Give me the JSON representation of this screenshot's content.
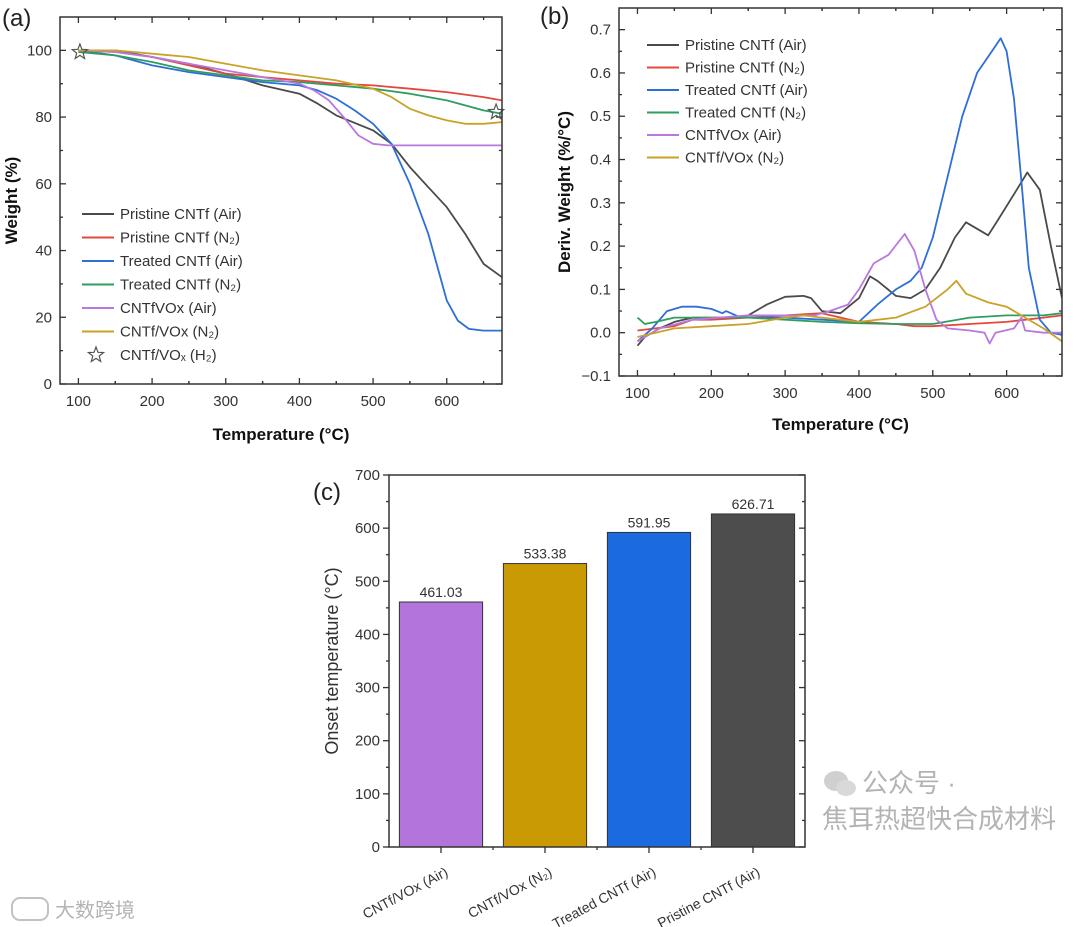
{
  "watermarks": {
    "center": "公众号 · 焦耳热超快合成材料",
    "corner": "大数跨境"
  },
  "chart_data": [
    {
      "panel": "(a)",
      "type": "line",
      "xlabel": "Temperature (°C)",
      "ylabel": "Weight (%)",
      "xlim": [
        75,
        675
      ],
      "ylim": [
        0,
        110
      ],
      "xticks": [
        100,
        200,
        300,
        400,
        500,
        600
      ],
      "yticks": [
        0,
        20,
        40,
        60,
        80,
        100
      ],
      "legend_position": "center-left",
      "series": [
        {
          "name": "Pristine CNTf (Air)",
          "color": "#4a4a4a",
          "x": [
            100,
            150,
            200,
            250,
            300,
            350,
            400,
            425,
            450,
            500,
            525,
            550,
            575,
            600,
            625,
            650,
            675
          ],
          "y": [
            100,
            100,
            98,
            96,
            93,
            89.5,
            87,
            84,
            80.5,
            76,
            72,
            65,
            59,
            53,
            45,
            36,
            32
          ]
        },
        {
          "name": "Pristine CNTf (N₂)",
          "color": "#e2483e",
          "x": [
            100,
            150,
            200,
            250,
            300,
            350,
            400,
            450,
            500,
            550,
            600,
            650,
            675
          ],
          "y": [
            100,
            99.5,
            98,
            95.5,
            93,
            92,
            91,
            90,
            89.5,
            88.5,
            87.5,
            86,
            85
          ]
        },
        {
          "name": "Treated CNTf (Air)",
          "color": "#2d6fd6",
          "x": [
            100,
            150,
            200,
            250,
            300,
            350,
            400,
            425,
            450,
            475,
            500,
            525,
            550,
            575,
            590,
            600,
            615,
            630,
            650,
            675
          ],
          "y": [
            100,
            98.5,
            95.5,
            93.5,
            92,
            90.5,
            89.5,
            88,
            85.5,
            82,
            78,
            72,
            60,
            45,
            33,
            25,
            19,
            16.5,
            16,
            16
          ]
        },
        {
          "name": "Treated CNTf (N₂)",
          "color": "#2e9e5e",
          "x": [
            100,
            150,
            200,
            250,
            300,
            350,
            400,
            450,
            500,
            550,
            600,
            650,
            675
          ],
          "y": [
            99.5,
            98.5,
            96.5,
            94,
            92.5,
            91,
            90.5,
            89.5,
            88.5,
            87,
            85,
            82,
            81
          ]
        },
        {
          "name": "CNTfVOx (Air)",
          "color": "#b878e0",
          "x": [
            100,
            150,
            200,
            250,
            300,
            350,
            400,
            420,
            440,
            460,
            480,
            500,
            520,
            550,
            600,
            675
          ],
          "y": [
            100,
            99.5,
            98,
            96,
            94,
            92,
            90,
            88,
            85,
            80,
            74.5,
            72,
            71.5,
            71.5,
            71.5,
            71.5
          ]
        },
        {
          "name": "CNTf/VOx (N₂)",
          "color": "#c9a227",
          "x": [
            100,
            150,
            200,
            250,
            300,
            350,
            400,
            450,
            480,
            500,
            525,
            550,
            575,
            600,
            625,
            650,
            675
          ],
          "y": [
            100,
            100,
            99,
            98,
            96,
            94,
            92.5,
            91,
            89.5,
            88.5,
            86,
            82.5,
            80.5,
            79,
            78,
            78,
            78.5
          ]
        },
        {
          "name": "CNTf/VOₓ (H₂)",
          "color": "#555555",
          "marker": "star",
          "x": [
            102,
            667
          ],
          "y": [
            99.5,
            81.5
          ]
        }
      ]
    },
    {
      "panel": "(b)",
      "type": "line",
      "xlabel": "Temperature (°C)",
      "ylabel": "Deriv. Weight (%/°C)",
      "xlim": [
        75,
        675
      ],
      "ylim": [
        -0.1,
        0.75
      ],
      "xticks": [
        100,
        200,
        300,
        400,
        500,
        600
      ],
      "yticks": [
        -0.1,
        0.0,
        0.1,
        0.2,
        0.3,
        0.4,
        0.5,
        0.6,
        0.7
      ],
      "ytick_labels": [
        "−0.1",
        "0.0",
        "0.1",
        "0.2",
        "0.3",
        "0.4",
        "0.5",
        "0.6",
        "0.7"
      ],
      "legend_position": "top-left",
      "series": [
        {
          "name": "Pristine CNTf (Air)",
          "color": "#4a4a4a",
          "x": [
            100,
            110,
            130,
            150,
            175,
            200,
            225,
            250,
            275,
            300,
            325,
            335,
            350,
            375,
            400,
            415,
            425,
            450,
            470,
            490,
            510,
            530,
            545,
            560,
            575,
            590,
            610,
            628,
            645,
            660,
            675
          ],
          "y": [
            -0.03,
            -0.01,
            0.01,
            0.025,
            0.035,
            0.035,
            0.035,
            0.04,
            0.065,
            0.083,
            0.085,
            0.08,
            0.05,
            0.045,
            0.08,
            0.13,
            0.12,
            0.085,
            0.08,
            0.1,
            0.15,
            0.22,
            0.255,
            0.24,
            0.225,
            0.265,
            0.32,
            0.37,
            0.33,
            0.2,
            0.08
          ]
        },
        {
          "name": "Pristine CNTf (N₂)",
          "color": "#e2483e",
          "x": [
            100,
            150,
            175,
            200,
            250,
            300,
            350,
            400,
            450,
            475,
            500,
            550,
            600,
            650,
            675
          ],
          "y": [
            0.005,
            0.015,
            0.03,
            0.03,
            0.035,
            0.04,
            0.045,
            0.025,
            0.02,
            0.015,
            0.015,
            0.02,
            0.025,
            0.035,
            0.04
          ]
        },
        {
          "name": "Treated CNTf (Air)",
          "color": "#2d6fd6",
          "x": [
            100,
            120,
            140,
            160,
            180,
            200,
            215,
            220,
            240,
            300,
            350,
            400,
            425,
            450,
            470,
            485,
            500,
            520,
            540,
            560,
            580,
            592,
            600,
            610,
            620,
            630,
            645,
            660,
            675
          ],
          "y": [
            -0.02,
            0.01,
            0.05,
            0.06,
            0.06,
            0.055,
            0.045,
            0.05,
            0.035,
            0.035,
            0.03,
            0.025,
            0.065,
            0.1,
            0.12,
            0.15,
            0.22,
            0.36,
            0.5,
            0.6,
            0.65,
            0.68,
            0.65,
            0.54,
            0.35,
            0.15,
            0.03,
            0,
            -0.005
          ]
        },
        {
          "name": "Treated CNTf (N₂)",
          "color": "#2e9e5e",
          "x": [
            100,
            110,
            125,
            150,
            200,
            250,
            300,
            350,
            400,
            450,
            500,
            550,
            600,
            650,
            675
          ],
          "y": [
            0.035,
            0.02,
            0.025,
            0.035,
            0.035,
            0.035,
            0.03,
            0.025,
            0.022,
            0.02,
            0.02,
            0.035,
            0.04,
            0.04,
            0.045
          ]
        },
        {
          "name": "CNTfVOx (Air)",
          "color": "#b878e0",
          "x": [
            100,
            130,
            175,
            250,
            300,
            340,
            360,
            385,
            400,
            420,
            440,
            462,
            475,
            490,
            505,
            520,
            550,
            570,
            577,
            585,
            610,
            620,
            625,
            650,
            675
          ],
          "y": [
            -0.02,
            0.01,
            0.03,
            0.04,
            0.04,
            0.04,
            0.05,
            0.065,
            0.1,
            0.16,
            0.18,
            0.228,
            0.19,
            0.1,
            0.03,
            0.01,
            0.005,
            0,
            -0.025,
            0,
            0.01,
            0.035,
            0.005,
            0,
            0
          ]
        },
        {
          "name": "CNTf/VOx (N₂)",
          "color": "#c9a227",
          "x": [
            100,
            150,
            200,
            250,
            300,
            325,
            350,
            375,
            400,
            450,
            490,
            520,
            532,
            545,
            575,
            600,
            625,
            650,
            675
          ],
          "y": [
            -0.01,
            0.01,
            0.015,
            0.02,
            0.035,
            0.04,
            0.035,
            0.03,
            0.025,
            0.035,
            0.06,
            0.1,
            0.12,
            0.09,
            0.07,
            0.06,
            0.035,
            0.01,
            -0.02
          ]
        }
      ]
    },
    {
      "panel": "(c)",
      "type": "bar",
      "xlabel": "",
      "ylabel": "Onset temperature (°C)",
      "ylim": [
        0,
        700
      ],
      "yticks": [
        0,
        100,
        200,
        300,
        400,
        500,
        600,
        700
      ],
      "categories": [
        "CNTf/VOx (Air)",
        "CNTf/VOx (N₂)",
        "Treated CNTf (Air)",
        "Pristine CNTf (Air)"
      ],
      "values": [
        461.03,
        533.38,
        591.95,
        626.71
      ],
      "value_labels": [
        "461.03",
        "533.38",
        "591.95",
        "626.71"
      ],
      "colors": [
        "#b374dc",
        "#c99a04",
        "#1c6ae0",
        "#4d4d4d"
      ]
    }
  ]
}
